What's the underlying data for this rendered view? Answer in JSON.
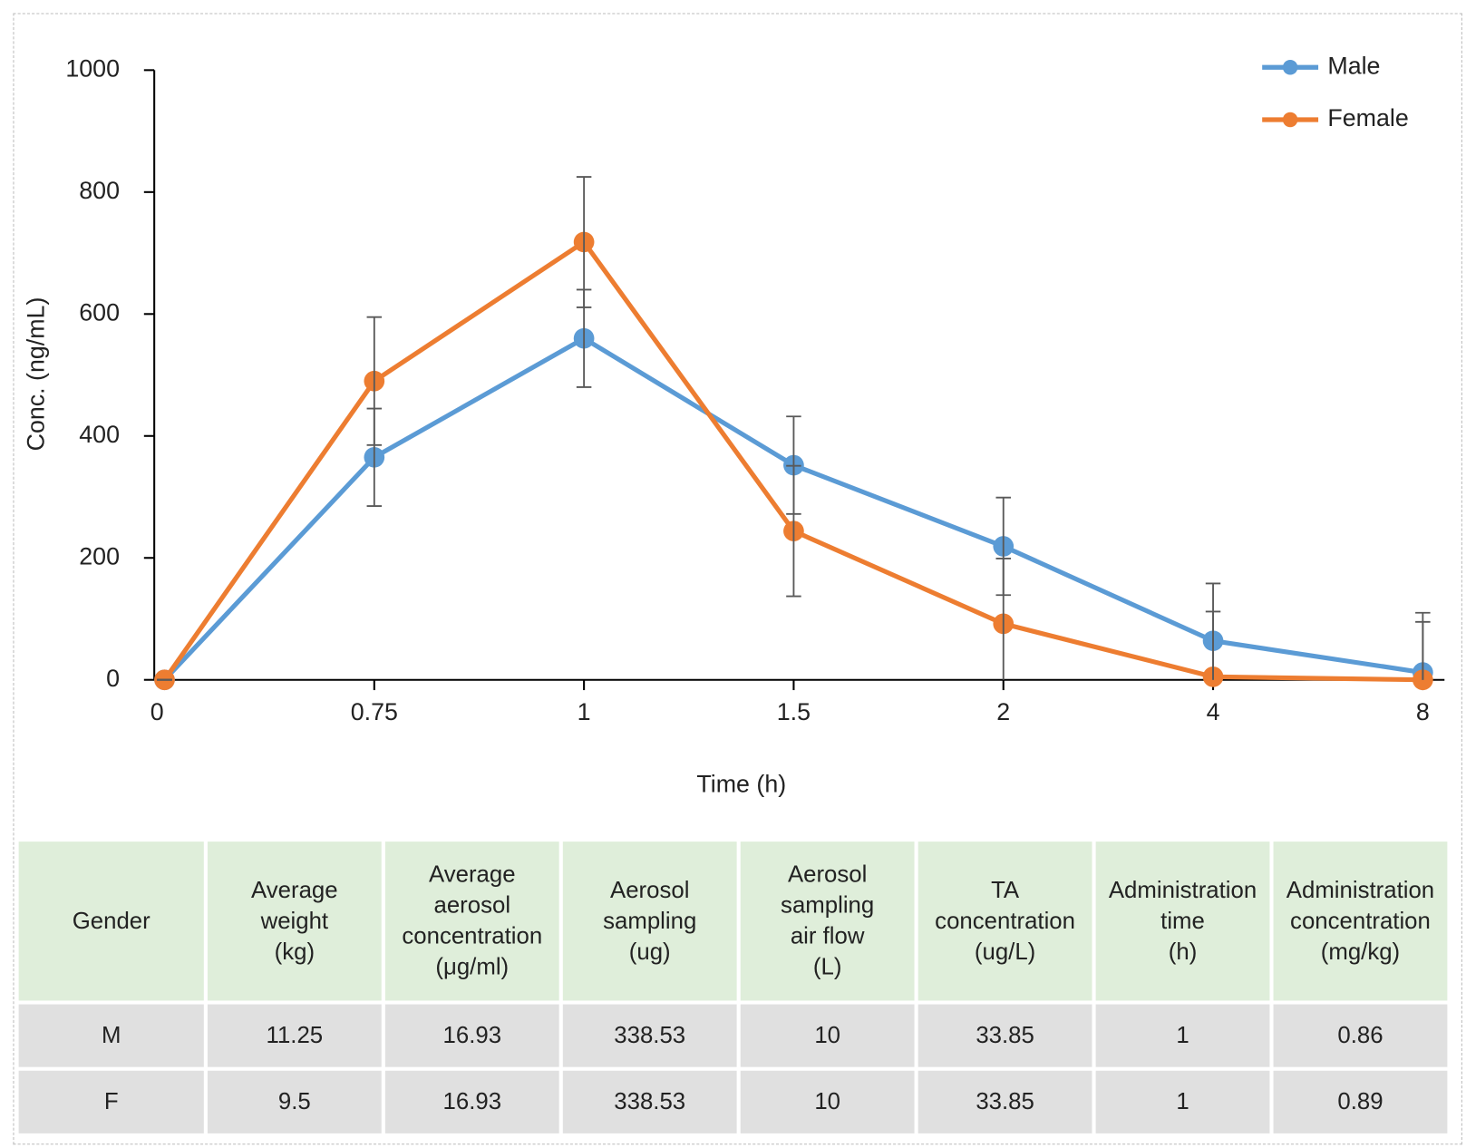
{
  "chart_data": {
    "type": "line",
    "x_label": "Time (h)",
    "y_label": "Conc. (ng/mL)",
    "categories": [
      "0",
      "0.75",
      "1",
      "1.5",
      "2",
      "4",
      "8"
    ],
    "ylim": [
      0,
      1000
    ],
    "yticks": [
      0,
      200,
      400,
      600,
      800,
      1000
    ],
    "legend": "top-right",
    "series": [
      {
        "name": "Male",
        "color": "#5b9bd5",
        "values": [
          0,
          365,
          560,
          352,
          219,
          64,
          12
        ],
        "error": [
          0,
          80,
          80,
          80,
          80,
          94,
          98
        ]
      },
      {
        "name": "Female",
        "color": "#ed7d31",
        "values": [
          0,
          490,
          718,
          244,
          92,
          5,
          0
        ],
        "error": [
          0,
          105,
          107,
          107,
          107,
          107,
          95
        ]
      }
    ]
  },
  "table": {
    "header": [
      [
        "Gender"
      ],
      [
        "Average",
        "weight",
        "(kg)"
      ],
      [
        "Average",
        "aerosol",
        "concentration",
        "(μg/ml)"
      ],
      [
        "Aerosol",
        "sampling",
        "(ug)"
      ],
      [
        "Aerosol",
        "sampling",
        "air flow",
        "(L)"
      ],
      [
        "TA",
        "concentration",
        "(ug/L)"
      ],
      [
        "Administration",
        "time",
        "(h)"
      ],
      [
        "Administration",
        "concentration",
        "(mg/kg)"
      ]
    ],
    "rows": [
      [
        "M",
        "11.25",
        "16.93",
        "338.53",
        "10",
        "33.85",
        "1",
        "0.86"
      ],
      [
        "F",
        "9.5",
        "16.93",
        "338.53",
        "10",
        "33.85",
        "1",
        "0.89"
      ]
    ]
  }
}
